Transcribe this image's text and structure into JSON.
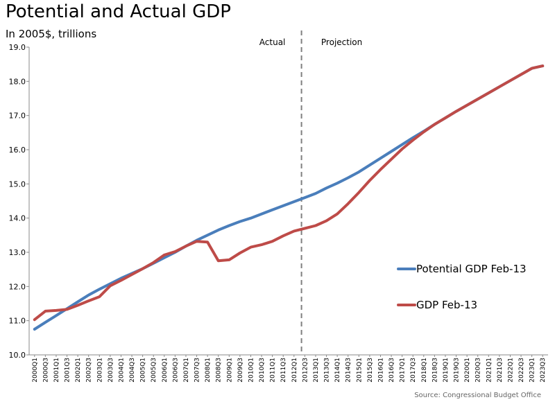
{
  "chart_data": {
    "type": "line",
    "title": "Potential and Actual GDP",
    "subtitle": "In 2005$, trillions",
    "xlabel": "",
    "ylabel": "",
    "ylim": [
      10.0,
      19.0
    ],
    "yticks": [
      "10.0",
      "11.0",
      "12.0",
      "13.0",
      "14.0",
      "15.0",
      "16.0",
      "17.0",
      "18.0",
      "19.0"
    ],
    "categories": [
      "2000Q1",
      "2000Q3",
      "2001Q1",
      "2001Q3",
      "2002Q1",
      "2002Q3",
      "2003Q1",
      "2003Q3",
      "2004Q1",
      "2004Q3",
      "2005Q1",
      "2005Q3",
      "2006Q1",
      "2006Q3",
      "2007Q1",
      "2007Q3",
      "2008Q1",
      "2008Q3",
      "2009Q1",
      "2009Q3",
      "2010Q1",
      "2010Q3",
      "2011Q1",
      "2011Q3",
      "2012Q1",
      "2012Q3",
      "2013Q1",
      "2013Q3",
      "2014Q1",
      "2014Q3",
      "2015Q1",
      "2015Q3",
      "2016Q1",
      "2016Q3",
      "2017Q1",
      "2017Q3",
      "2018Q1",
      "2018Q3",
      "2019Q1",
      "2019Q3",
      "2020Q1",
      "2020Q3",
      "2021Q1",
      "2021Q3",
      "2022Q1",
      "2022Q3",
      "2023Q1",
      "2023Q3"
    ],
    "divider_after": "2012Q3",
    "region_labels": [
      "Actual",
      "Projection"
    ],
    "series": [
      {
        "name": "Potential GDP Feb-13",
        "color": "#4a7ebb",
        "values": [
          10.75,
          10.95,
          11.15,
          11.35,
          11.55,
          11.75,
          11.92,
          12.08,
          12.24,
          12.38,
          12.52,
          12.68,
          12.84,
          13.0,
          13.18,
          13.35,
          13.5,
          13.65,
          13.78,
          13.9,
          14.0,
          14.12,
          14.24,
          14.36,
          14.48,
          14.6,
          14.72,
          14.88,
          15.02,
          15.18,
          15.35,
          15.55,
          15.75,
          15.95,
          16.15,
          16.35,
          16.54,
          16.74,
          16.93,
          17.12,
          17.3,
          17.48,
          17.66,
          17.84,
          18.02,
          18.2,
          18.38,
          18.45
        ]
      },
      {
        "name": "GDP Feb-13",
        "color": "#be4b48",
        "values": [
          11.03,
          11.28,
          11.3,
          11.33,
          11.45,
          11.58,
          11.7,
          12.02,
          12.18,
          12.35,
          12.52,
          12.7,
          12.92,
          13.02,
          13.18,
          13.32,
          13.3,
          12.75,
          12.78,
          12.98,
          13.15,
          13.22,
          13.32,
          13.48,
          13.62,
          13.7,
          13.78,
          13.92,
          14.12,
          14.42,
          14.75,
          15.1,
          15.42,
          15.72,
          16.02,
          16.28,
          16.52,
          16.74,
          16.93,
          17.12,
          17.3,
          17.48,
          17.66,
          17.84,
          18.02,
          18.2,
          18.38,
          18.45
        ]
      }
    ],
    "legend": [
      "Potential GDP Feb-13",
      "GDP Feb-13"
    ],
    "source": "Source: Congressional Budget Office"
  }
}
